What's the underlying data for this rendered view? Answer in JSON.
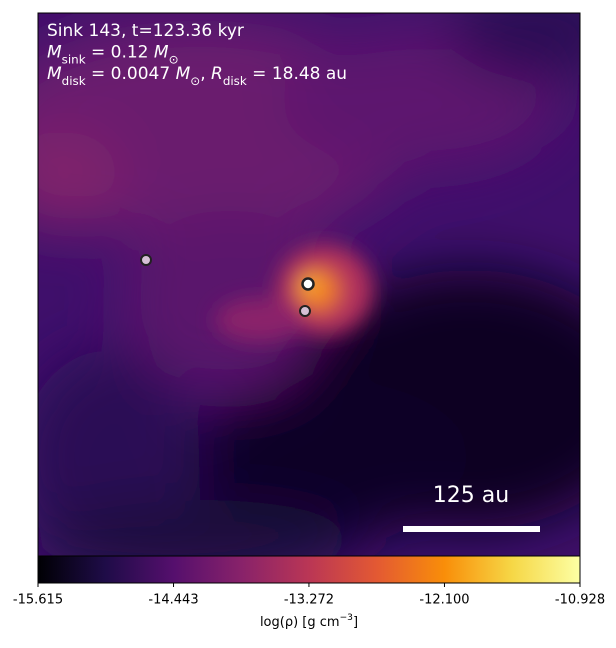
{
  "chart_data": {
    "type": "image",
    "annotation_lines": [
      [
        {
          "text": "Sink 143, t=123.36 kyr"
        }
      ],
      [
        {
          "text": "M",
          "sub": "sink"
        },
        {
          "text": " = 0.12 "
        },
        {
          "text": "M",
          "sub": "⊙"
        }
      ],
      [
        {
          "text": "M",
          "sub": "disk"
        },
        {
          "text": " = 0.0047 "
        },
        {
          "text": "M",
          "sub": "⊙"
        },
        {
          "text": ", "
        },
        {
          "text": "R",
          "sub": "disk"
        },
        {
          "text": " = 18.48 au"
        }
      ]
    ],
    "scale_bar_label": "125 au",
    "colorbar": {
      "label": [
        {
          "text": "log(ρ) [g cm"
        },
        {
          "sup": "−3"
        },
        {
          "text": "]"
        }
      ],
      "clim": [
        -15.615,
        -10.928
      ],
      "ticks": [
        -15.615,
        -14.443,
        -13.272,
        {
          "value": -12.1,
          "label": "-12.100"
        },
        -10.928
      ],
      "colormap": [
        "#000004",
        "#1f0c48",
        "#550f6d",
        "#88226a",
        "#ba3655",
        "#e35933",
        "#f98e09",
        "#f6d746",
        "#fcffa4"
      ]
    }
  }
}
